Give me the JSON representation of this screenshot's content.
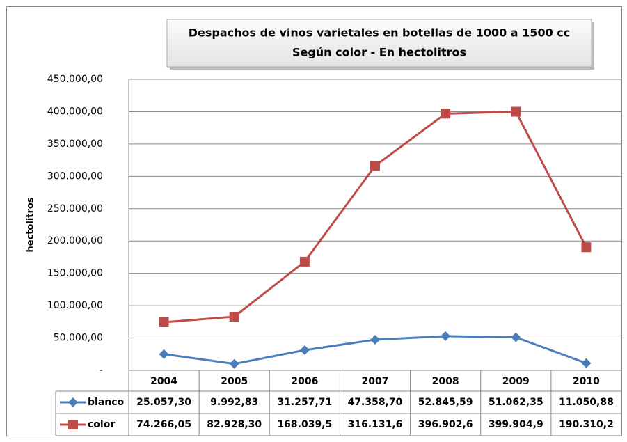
{
  "chart_data": {
    "type": "line",
    "title": "Despachos de vinos varietales en botellas de 1000 a 1500 cc",
    "subtitle": "Según color - En hectolitros",
    "y_label": "hectolitros",
    "categories": [
      "2004",
      "2005",
      "2006",
      "2007",
      "2008",
      "2009",
      "2010"
    ],
    "series": [
      {
        "name": "blanco",
        "color": "#4a7ebb",
        "marker": "diamond",
        "values": [
          25057.3,
          9992.83,
          31257.71,
          47358.7,
          52845.59,
          51062.35,
          11050.88
        ],
        "value_labels": [
          "25.057,30",
          "9.992,83",
          "31.257,71",
          "47.358,70",
          "52.845,59",
          "51.062,35",
          "11.050,88"
        ]
      },
      {
        "name": "color",
        "color": "#be4b48",
        "marker": "square",
        "values": [
          74266.05,
          82928.3,
          168039.5,
          316131.6,
          396902.6,
          399904.9,
          190310.2
        ],
        "value_labels": [
          "74.266,05",
          "82.928,30",
          "168.039,5",
          "316.131,6",
          "396.902,6",
          "399.904,9",
          "190.310,2"
        ]
      }
    ],
    "ylim": [
      0,
      450000
    ],
    "yticks": [
      {
        "value": 0,
        "label": "-"
      },
      {
        "value": 50000,
        "label": "50.000,00"
      },
      {
        "value": 100000,
        "label": "100.000,00"
      },
      {
        "value": 150000,
        "label": "150.000,00"
      },
      {
        "value": 200000,
        "label": "200.000,00"
      },
      {
        "value": 250000,
        "label": "250.000,00"
      },
      {
        "value": 300000,
        "label": "300.000,00"
      },
      {
        "value": 350000,
        "label": "350.000,00"
      },
      {
        "value": 400000,
        "label": "400.000,00"
      },
      {
        "value": 450000,
        "label": "450.000,00"
      }
    ],
    "grid": true
  }
}
